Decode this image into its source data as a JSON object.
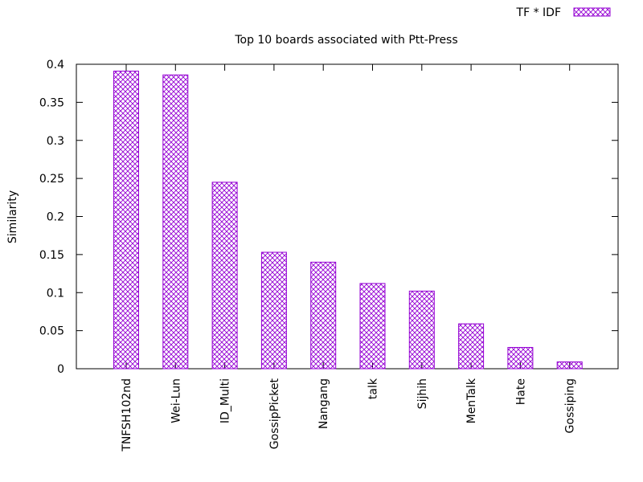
{
  "chart_data": {
    "type": "bar",
    "title": "Top 10 boards associated with Ptt-Press",
    "xlabel": "",
    "ylabel": "Similarity",
    "ylim": [
      0,
      0.4
    ],
    "yticks": [
      {
        "value": 0,
        "label": "0"
      },
      {
        "value": 0.05,
        "label": "0.05"
      },
      {
        "value": 0.1,
        "label": "0.1"
      },
      {
        "value": 0.15,
        "label": "0.15"
      },
      {
        "value": 0.2,
        "label": "0.2"
      },
      {
        "value": 0.25,
        "label": "0.25"
      },
      {
        "value": 0.3,
        "label": "0.3"
      },
      {
        "value": 0.35,
        "label": "0.35"
      },
      {
        "value": 0.4,
        "label": "0.4"
      }
    ],
    "categories": [
      "TNFSH102nd",
      "Wei-Lun",
      "ID_Multi",
      "GossipPicket",
      "Nangang",
      "talk",
      "Sijhih",
      "MenTalk",
      "Hate",
      "Gossiping"
    ],
    "series": [
      {
        "name": "TF * IDF",
        "color": "#9400d3",
        "pattern": "crosshatch",
        "values": [
          0.391,
          0.386,
          0.245,
          0.153,
          0.14,
          0.112,
          0.102,
          0.059,
          0.028,
          0.009
        ]
      }
    ],
    "grid": false,
    "legend": "top-right"
  }
}
